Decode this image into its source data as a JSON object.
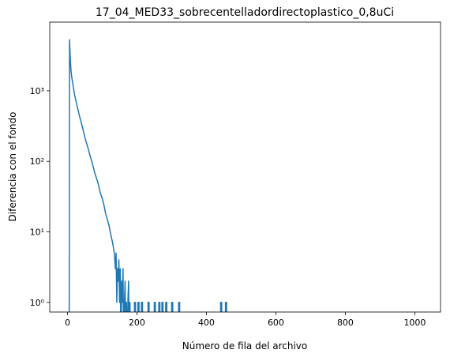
{
  "chart_data": {
    "type": "line",
    "title": "17_04_MED33_sobrecentelladordirectoplastico_0,8uCi",
    "xlabel": "Número de fila del archivo",
    "ylabel": "Diferencia con el fondo",
    "yscale": "log",
    "color": "#1f77b4",
    "xlim": [
      -51,
      1074
    ],
    "ylim": [
      0.73,
      9400
    ],
    "xticks": [
      0,
      200,
      400,
      600,
      800,
      1000
    ],
    "yticks": [
      {
        "value": 1,
        "label": "10⁰"
      },
      {
        "value": 10,
        "label": "10¹"
      },
      {
        "value": 100,
        "label": "10²"
      },
      {
        "value": 1000,
        "label": "10³"
      }
    ],
    "x": [
      0,
      5,
      6,
      8,
      10,
      12,
      15,
      20,
      25,
      30,
      35,
      40,
      45,
      50,
      55,
      60,
      65,
      70,
      75,
      80,
      85,
      90,
      95,
      100,
      105,
      110,
      115,
      120,
      125,
      130,
      135,
      138,
      140,
      142,
      144,
      146,
      148,
      150,
      152,
      154,
      156,
      158,
      160,
      162,
      164,
      166,
      168,
      170,
      172,
      174,
      176,
      178,
      180,
      182,
      193,
      193,
      196,
      196,
      203,
      203,
      206,
      206,
      213,
      213,
      216,
      216,
      232,
      232,
      235,
      235,
      250,
      250,
      253,
      253,
      263,
      263,
      266,
      266,
      272,
      272,
      275,
      275,
      283,
      283,
      286,
      286,
      300,
      300,
      303,
      303,
      320,
      320,
      323,
      323,
      441,
      441,
      444,
      444,
      455,
      455,
      458,
      458,
      1023
    ],
    "values": [
      0,
      0,
      5300,
      3000,
      2000,
      1600,
      1300,
      900,
      700,
      550,
      430,
      350,
      280,
      220,
      180,
      150,
      120,
      100,
      80,
      65,
      55,
      45,
      35,
      30,
      24,
      18,
      15,
      12,
      9,
      7,
      5,
      3,
      5,
      1,
      3,
      2,
      4,
      1,
      3,
      0,
      2,
      1,
      3,
      0,
      1,
      2,
      0,
      1,
      0,
      1,
      2,
      0,
      1,
      0,
      0,
      1,
      1,
      0,
      0,
      1,
      1,
      0,
      0,
      1,
      1,
      0,
      0,
      1,
      1,
      0,
      0,
      1,
      1,
      0,
      0,
      1,
      1,
      0,
      0,
      1,
      1,
      0,
      0,
      1,
      1,
      0,
      0,
      1,
      1,
      0,
      0,
      1,
      1,
      0,
      0,
      1,
      1,
      0,
      0,
      1,
      1,
      0,
      0
    ]
  }
}
